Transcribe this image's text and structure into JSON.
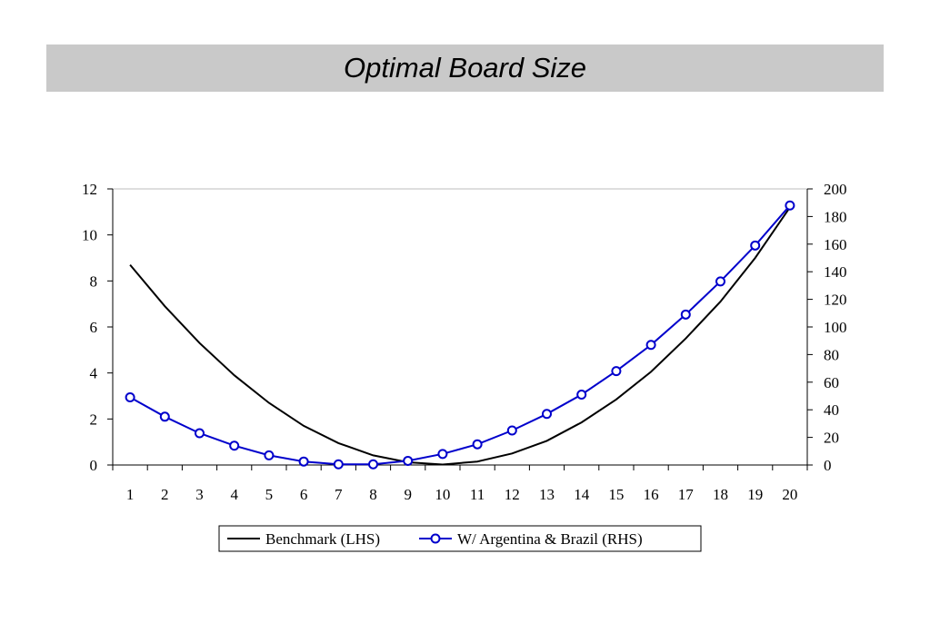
{
  "title": "Optimal Board Size",
  "chart_data": {
    "type": "line",
    "x": [
      1,
      2,
      3,
      4,
      5,
      6,
      7,
      8,
      9,
      10,
      11,
      12,
      13,
      14,
      15,
      16,
      17,
      18,
      19,
      20
    ],
    "series": [
      {
        "name": "Benchmark (LHS)",
        "axis": "left",
        "color": "#000000",
        "marker": "none",
        "values": [
          8.7,
          6.9,
          5.3,
          3.9,
          2.7,
          1.7,
          0.95,
          0.42,
          0.12,
          0.02,
          0.15,
          0.5,
          1.05,
          1.85,
          2.85,
          4.05,
          5.5,
          7.1,
          9.0,
          11.2
        ]
      },
      {
        "name": "W/ Argentina & Brazil (RHS)",
        "axis": "right",
        "color": "#0000cc",
        "marker": "open-circle",
        "values": [
          49,
          35,
          23,
          14,
          7,
          2.5,
          0.5,
          0.5,
          3,
          8,
          15,
          25,
          37,
          51,
          68,
          87,
          109,
          133,
          159,
          188
        ]
      }
    ],
    "y_left": {
      "lim": [
        0,
        12
      ],
      "ticks": [
        0,
        2,
        4,
        6,
        8,
        10,
        12
      ]
    },
    "y_right": {
      "lim": [
        0,
        200
      ],
      "ticks": [
        0,
        20,
        40,
        60,
        80,
        100,
        120,
        140,
        160,
        180,
        200
      ]
    },
    "xlabel": "",
    "ylabel": "",
    "legend_placement": "bottom-center",
    "grid": false
  }
}
